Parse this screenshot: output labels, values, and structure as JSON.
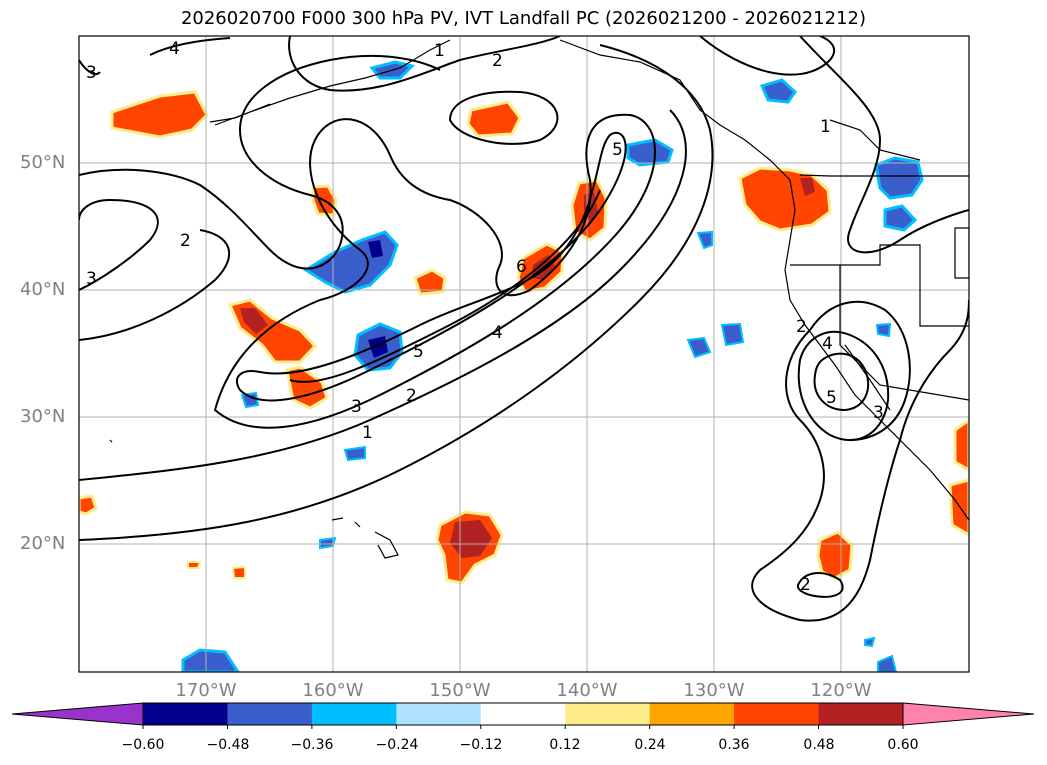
{
  "title": "2026020700 F000 300 hPa PV, IVT Landfall PC (2026021200 - 2026021212)",
  "axes": {
    "lat_labels": [
      "50°N",
      "40°N",
      "30°N",
      "20°N"
    ],
    "lon_labels": [
      "170°W",
      "160°W",
      "150°W",
      "140°W",
      "130°W",
      "120°W"
    ]
  },
  "contour_labels": [
    "4",
    "3",
    "1",
    "2",
    "1",
    "2",
    "3",
    "5",
    "6",
    "5",
    "4",
    "2",
    "3",
    "1",
    "2",
    "4",
    "5",
    "3",
    "2"
  ],
  "colorbar": {
    "tick_labels": [
      "−0.60",
      "−0.48",
      "−0.36",
      "−0.24",
      "−0.12",
      "0.12",
      "0.24",
      "0.36",
      "0.48",
      "0.60"
    ],
    "colors": {
      "under": "#9933cc",
      "bins": [
        "#00008b",
        "#3a5fcd",
        "#00bfff",
        "#b0e2ff",
        "#ffffff",
        "#ffec8b",
        "#ffa500",
        "#ff4500",
        "#b22222"
      ],
      "over": "#ff82ab"
    }
  },
  "colors": {
    "contour": "#000000",
    "grid": "#b0b0b0",
    "coast": "#000000"
  }
}
